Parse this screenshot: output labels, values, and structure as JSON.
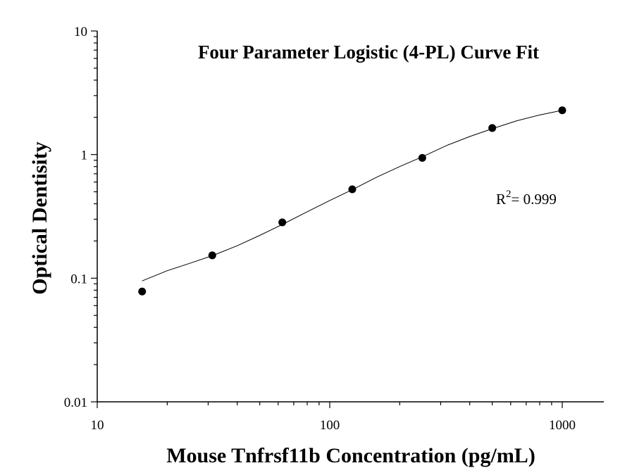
{
  "chart_data": {
    "type": "scatter",
    "title": "Four Parameter Logistic (4-PL) Curve Fit",
    "xlabel": "Mouse Tnfrsf11b Concentration (pg/mL)",
    "ylabel": "Optical Dentisity",
    "x_scale": "log",
    "y_scale": "log",
    "xlim": [
      10,
      1500
    ],
    "ylim": [
      0.01,
      10
    ],
    "x_ticks": [
      "10",
      "100",
      "1000"
    ],
    "y_ticks": [
      "0.01",
      "0.1",
      "1",
      "10"
    ],
    "grid": false,
    "series": [
      {
        "x": [
          15.6,
          31.25,
          62.5,
          125,
          250,
          500,
          1000
        ],
        "y": [
          0.078,
          0.153,
          0.283,
          0.524,
          0.94,
          1.64,
          2.28
        ]
      }
    ],
    "fit_curve": {
      "x": [
        15.6,
        20,
        25,
        31.25,
        40,
        50,
        62.5,
        80,
        100,
        125,
        160,
        200,
        250,
        320,
        400,
        500,
        640,
        800,
        1000
      ],
      "y": [
        0.095,
        0.115,
        0.132,
        0.152,
        0.183,
        0.222,
        0.272,
        0.345,
        0.425,
        0.52,
        0.66,
        0.8,
        0.96,
        1.19,
        1.4,
        1.62,
        1.88,
        2.09,
        2.28
      ]
    },
    "annotation": {
      "r_base": "R",
      "r_sup": "2",
      "r_value": "= 0.999"
    }
  }
}
